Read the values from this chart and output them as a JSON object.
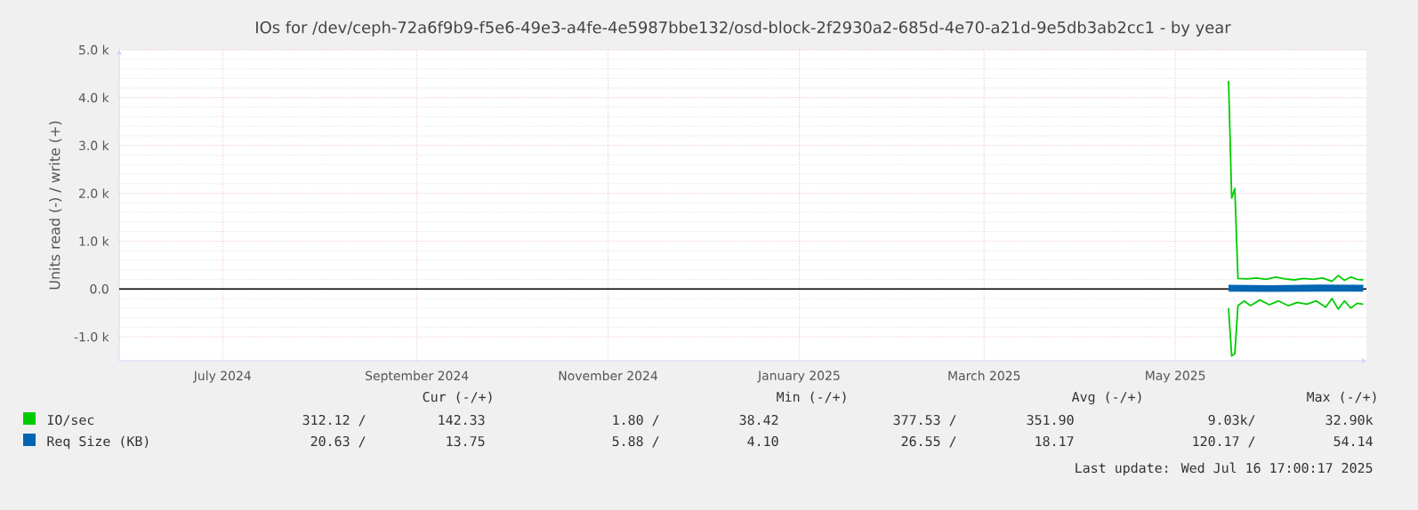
{
  "chart_data": {
    "type": "line",
    "title": "IOs for /dev/ceph-72a6f9b9-f5e6-49e3-a4fe-4e5987bbe132/osd-block-2f2930a2-685d-4e70-a21d-9e5db3ab2cc1 - by year",
    "ylabel": "Units read (-) / write (+)",
    "xlim": [
      "2024-06-13",
      "2025-07-16"
    ],
    "xticks": [
      {
        "value": "2024-07-16",
        "label": "July 2024"
      },
      {
        "value": "2024-09-16",
        "label": "September 2024"
      },
      {
        "value": "2024-11-16",
        "label": "November 2024"
      },
      {
        "value": "2025-01-16",
        "label": "January 2025"
      },
      {
        "value": "2025-03-16",
        "label": "March 2025"
      },
      {
        "value": "2025-05-16",
        "label": "May 2025"
      }
    ],
    "ylim": [
      -1500,
      5000
    ],
    "yticks": [
      {
        "value": -1000,
        "label": "-1.0 k"
      },
      {
        "value": 0,
        "label": "0.0"
      },
      {
        "value": 1000,
        "label": "1.0 k"
      },
      {
        "value": 2000,
        "label": "2.0 k"
      },
      {
        "value": 3000,
        "label": "3.0 k"
      },
      {
        "value": 4000,
        "label": "4.0 k"
      },
      {
        "value": 5000,
        "label": "5.0 k"
      }
    ],
    "grid": true,
    "legend": "bottom",
    "ref_lines": [
      {
        "axis": "y",
        "value": 0,
        "color": "#000000"
      }
    ],
    "series": [
      {
        "name": "IO/sec",
        "color": "#00cc00",
        "x": [
          "2025-06-02",
          "2025-06-03",
          "2025-06-04",
          "2025-06-05",
          "2025-06-08",
          "2025-06-11",
          "2025-06-14",
          "2025-06-17",
          "2025-06-20",
          "2025-06-23",
          "2025-06-26",
          "2025-06-29",
          "2025-07-02",
          "2025-07-05",
          "2025-07-07",
          "2025-07-09",
          "2025-07-11",
          "2025-07-13",
          "2025-07-15"
        ],
        "values": [
          4350,
          1900,
          2100,
          220,
          210,
          230,
          200,
          250,
          210,
          190,
          220,
          200,
          230,
          160,
          280,
          180,
          250,
          200,
          190
        ]
      },
      {
        "color": "#00cc00",
        "x": [
          "2025-06-02",
          "2025-06-03",
          "2025-06-04",
          "2025-06-05",
          "2025-06-07",
          "2025-06-09",
          "2025-06-12",
          "2025-06-15",
          "2025-06-18",
          "2025-06-21",
          "2025-06-24",
          "2025-06-27",
          "2025-06-30",
          "2025-07-03",
          "2025-07-05",
          "2025-07-07",
          "2025-07-09",
          "2025-07-11",
          "2025-07-13",
          "2025-07-15"
        ],
        "values": [
          -400,
          -1400,
          -1350,
          -350,
          -250,
          -350,
          -230,
          -330,
          -250,
          -350,
          -280,
          -320,
          -250,
          -380,
          -200,
          -420,
          -250,
          -400,
          -300,
          -320
        ]
      },
      {
        "name": "Req Size (KB)",
        "color": "#0066b3",
        "x": [
          "2025-06-02",
          "2025-06-15",
          "2025-07-01",
          "2025-07-15"
        ],
        "values": [
          50,
          40,
          55,
          50
        ]
      },
      {
        "color": "#0066b3",
        "x": [
          "2025-06-02",
          "2025-06-15",
          "2025-07-01",
          "2025-07-15"
        ],
        "values": [
          -20,
          -25,
          -20,
          -20
        ]
      }
    ],
    "annotations": [
      "Cur (-/+)",
      "Min (-/+)",
      "Avg (-/+)",
      "Max (-/+)",
      "312.12 /",
      "142.33",
      "1.80 /",
      "38.42",
      "377.53 /",
      "351.90",
      "9.03k/",
      "32.90k",
      "20.63 /",
      "13.75",
      "5.88 /",
      "4.10",
      "26.55 /",
      "18.17",
      "120.17 /",
      "54.14",
      "Last update: Wed Jul 16 17:00:17 2025"
    ]
  }
}
